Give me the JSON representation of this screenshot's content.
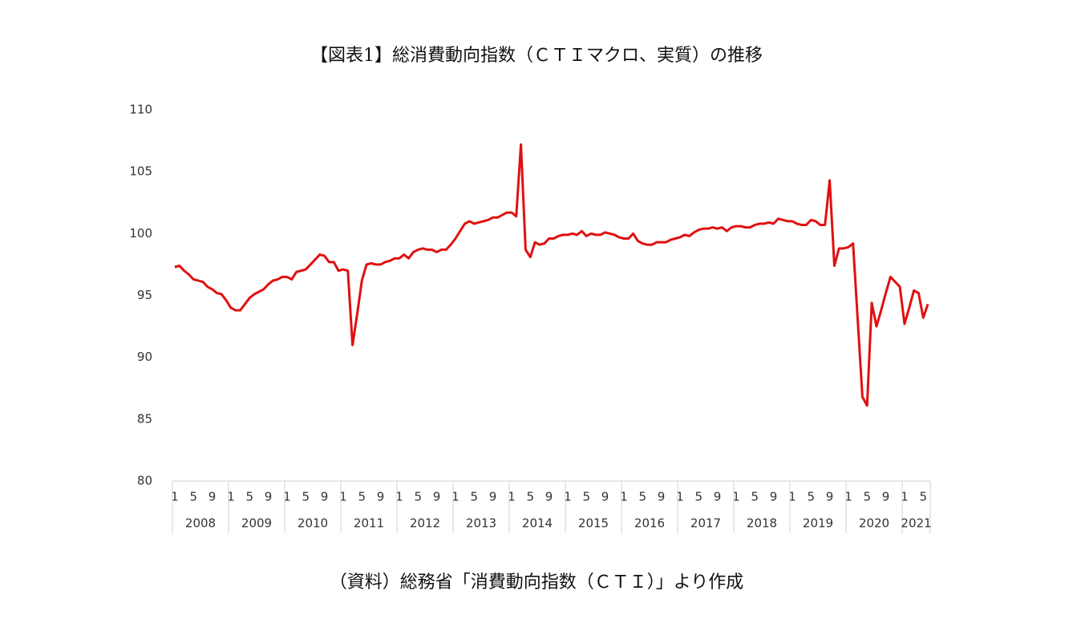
{
  "chart_data": {
    "type": "line",
    "title": "【図表1】総消費動向指数（ＣＴＩマクロ、実質）の推移",
    "source": "（資料）総務省「消費動向指数（ＣＴＩ）」より作成",
    "color": "#e01010",
    "ylim": [
      80,
      110
    ],
    "yticks": [
      80,
      85,
      90,
      95,
      100,
      105,
      110
    ],
    "categories": [
      "1",
      null,
      null,
      null,
      "5",
      null,
      null,
      null,
      "9",
      null,
      null,
      null,
      "1",
      null,
      null,
      null,
      "5",
      null,
      null,
      null,
      "9",
      null,
      null,
      null,
      "1",
      null,
      null,
      null,
      "5",
      null,
      null,
      null,
      "9",
      null,
      null,
      null,
      "1",
      null,
      null,
      null,
      "5",
      null,
      null,
      null,
      "9",
      null,
      null,
      null,
      "1",
      null,
      null,
      null,
      "5",
      null,
      null,
      null,
      "9",
      null,
      null,
      null,
      "1",
      null,
      null,
      null,
      "5",
      null,
      null,
      null,
      "9",
      null,
      null,
      null,
      "1",
      null,
      null,
      null,
      "5",
      null,
      null,
      null,
      "9",
      null,
      null,
      null,
      "1",
      null,
      null,
      null,
      "5",
      null,
      null,
      null,
      "9",
      null,
      null,
      null,
      "1",
      null,
      null,
      null,
      "5",
      null,
      null,
      null,
      "9",
      null,
      null,
      null,
      "1",
      null,
      null,
      null,
      "5",
      null,
      null,
      null,
      "9",
      null,
      null,
      null,
      "1",
      null,
      null,
      null,
      "5",
      null,
      null,
      null,
      "9",
      null,
      null,
      null,
      "1",
      null,
      null,
      null,
      "5",
      null,
      null,
      null,
      "9",
      null,
      null,
      null,
      "1",
      null,
      null,
      null,
      "5",
      null,
      null,
      null,
      "9",
      null,
      null,
      null,
      "1",
      null,
      null,
      null,
      "5",
      null
    ],
    "years": [
      "2008",
      "2009",
      "2010",
      "2011",
      "2012",
      "2013",
      "2014",
      "2015",
      "2016",
      "2017",
      "2018",
      "2019",
      "2020",
      "2021"
    ],
    "values": [
      97.3,
      97.4,
      97.0,
      96.7,
      96.3,
      96.2,
      96.1,
      95.7,
      95.5,
      95.2,
      95.1,
      94.6,
      94.0,
      93.8,
      93.8,
      94.3,
      94.8,
      95.1,
      95.3,
      95.5,
      95.9,
      96.2,
      96.3,
      96.5,
      96.5,
      96.3,
      96.9,
      97.0,
      97.1,
      97.5,
      97.9,
      98.3,
      98.2,
      97.7,
      97.7,
      97.0,
      97.1,
      97.0,
      91.0,
      93.5,
      96.2,
      97.5,
      97.6,
      97.5,
      97.5,
      97.7,
      97.8,
      98.0,
      98.0,
      98.3,
      98.0,
      98.5,
      98.7,
      98.8,
      98.7,
      98.7,
      98.5,
      98.7,
      98.7,
      99.1,
      99.6,
      100.2,
      100.8,
      101.0,
      100.8,
      100.9,
      101.0,
      101.1,
      101.3,
      101.3,
      101.5,
      101.7,
      101.7,
      101.4,
      107.2,
      98.7,
      98.1,
      99.3,
      99.1,
      99.2,
      99.6,
      99.6,
      99.8,
      99.9,
      99.9,
      100.0,
      99.9,
      100.2,
      99.8,
      100.0,
      99.9,
      99.9,
      100.1,
      100.0,
      99.9,
      99.7,
      99.6,
      99.6,
      100.0,
      99.4,
      99.2,
      99.1,
      99.1,
      99.3,
      99.3,
      99.3,
      99.5,
      99.6,
      99.7,
      99.9,
      99.8,
      100.1,
      100.3,
      100.4,
      100.4,
      100.5,
      100.4,
      100.5,
      100.2,
      100.5,
      100.6,
      100.6,
      100.5,
      100.5,
      100.7,
      100.8,
      100.8,
      100.9,
      100.8,
      101.2,
      101.1,
      101.0,
      101.0,
      100.8,
      100.7,
      100.7,
      101.1,
      101.0,
      100.7,
      100.7,
      104.3,
      97.4,
      98.8,
      98.8,
      98.9,
      99.2,
      93.0,
      86.8,
      86.1,
      94.4,
      92.5,
      93.8,
      95.2,
      96.5,
      96.1,
      95.7,
      92.7,
      94.0,
      95.4,
      95.2,
      93.2,
      94.3
    ]
  }
}
